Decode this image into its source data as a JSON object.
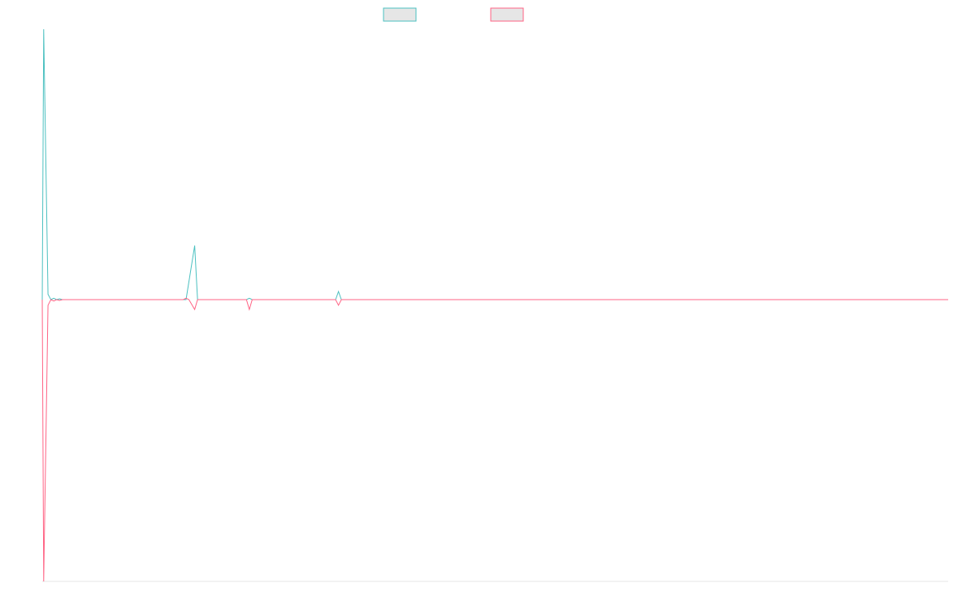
{
  "chart_data": {
    "type": "line",
    "title": "",
    "xlabel": "",
    "ylabel": "",
    "grid": false,
    "legend_position": "top-center",
    "legend": [
      {
        "color": "#4bc0c0"
      },
      {
        "color": "#ff6384"
      }
    ],
    "series": [
      {
        "color": "#4bc0c0",
        "points": [
          [
            0,
            0
          ],
          [
            0.5,
            10
          ],
          [
            2,
            0.2
          ],
          [
            3,
            0
          ],
          [
            4,
            0.05
          ],
          [
            5,
            0
          ],
          [
            6,
            0.03
          ],
          [
            7,
            0
          ],
          [
            50,
            0
          ],
          [
            53,
            2.0
          ],
          [
            54,
            0
          ],
          [
            71,
            0
          ],
          [
            72,
            0.05
          ],
          [
            73,
            0
          ],
          [
            102,
            0
          ],
          [
            103,
            0.3
          ],
          [
            104,
            0
          ],
          [
            315,
            0
          ]
        ]
      },
      {
        "color": "#ff6384",
        "points": [
          [
            0,
            0
          ],
          [
            0.5,
            -10
          ],
          [
            2,
            -0.2
          ],
          [
            3,
            0
          ],
          [
            4,
            -0.05
          ],
          [
            5,
            0
          ],
          [
            6,
            -0.03
          ],
          [
            7,
            0
          ],
          [
            49,
            0
          ],
          [
            50,
            0.05
          ],
          [
            51,
            0
          ],
          [
            53,
            -0.35
          ],
          [
            54,
            0
          ],
          [
            71,
            0
          ],
          [
            72,
            -0.35
          ],
          [
            73,
            0
          ],
          [
            102,
            0
          ],
          [
            103,
            -0.2
          ],
          [
            104,
            0
          ],
          [
            315,
            0
          ]
        ]
      }
    ],
    "xlim": [
      0,
      315
    ],
    "ylim": [
      -10,
      10
    ]
  }
}
